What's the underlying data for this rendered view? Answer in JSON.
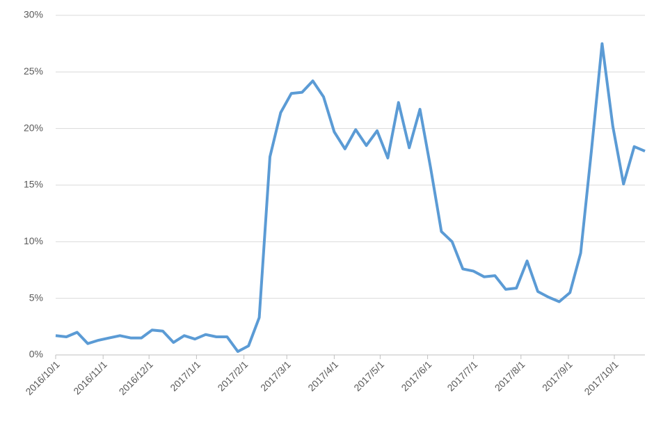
{
  "chart_data": {
    "type": "line",
    "x": [
      "2016/10/1",
      "2016/10/8",
      "2016/10/15",
      "2016/10/22",
      "2016/10/29",
      "2016/11/5",
      "2016/11/12",
      "2016/11/19",
      "2016/11/26",
      "2016/12/3",
      "2016/12/10",
      "2016/12/17",
      "2016/12/24",
      "2016/12/31",
      "2017/1/7",
      "2017/1/14",
      "2017/1/21",
      "2017/1/28",
      "2017/2/4",
      "2017/2/11",
      "2017/2/18",
      "2017/2/25",
      "2017/3/4",
      "2017/3/11",
      "2017/3/18",
      "2017/3/25",
      "2017/4/1",
      "2017/4/8",
      "2017/4/15",
      "2017/4/22",
      "2017/4/29",
      "2017/5/6",
      "2017/5/13",
      "2017/5/20",
      "2017/5/27",
      "2017/6/3",
      "2017/6/10",
      "2017/6/17",
      "2017/6/24",
      "2017/7/1",
      "2017/7/8",
      "2017/7/15",
      "2017/7/22",
      "2017/7/29",
      "2017/8/5",
      "2017/8/12",
      "2017/8/19",
      "2017/8/26",
      "2017/9/2",
      "2017/9/9",
      "2017/9/16",
      "2017/9/23",
      "2017/9/30",
      "2017/10/7",
      "2017/10/14",
      "2017/10/21"
    ],
    "series": [
      {
        "color": "#5b9bd5",
        "values": [
          1.7,
          1.6,
          2.0,
          1.0,
          1.3,
          1.5,
          1.7,
          1.5,
          1.5,
          2.2,
          2.1,
          1.1,
          1.7,
          1.4,
          1.8,
          1.6,
          1.6,
          0.3,
          0.8,
          3.3,
          17.5,
          21.4,
          23.1,
          23.2,
          24.2,
          22.8,
          19.7,
          18.2,
          19.9,
          18.5,
          19.8,
          17.4,
          22.3,
          18.3,
          21.7,
          16.5,
          10.9,
          10.0,
          7.6,
          7.4,
          6.9,
          7.0,
          5.8,
          5.9,
          8.3,
          5.6,
          5.1,
          4.7,
          5.5,
          9.0,
          18.0,
          27.5,
          20.2,
          15.1,
          18.4,
          18.0
        ]
      }
    ],
    "xlim": [
      "2016/10/1",
      "2017/10/21"
    ],
    "xticks": [
      "2016/10/1",
      "2016/11/1",
      "2016/12/1",
      "2017/1/1",
      "2017/2/1",
      "2017/3/1",
      "2017/4/1",
      "2017/5/1",
      "2017/6/1",
      "2017/7/1",
      "2017/8/1",
      "2017/9/1",
      "2017/10/1"
    ],
    "ylim": [
      0,
      30
    ],
    "yticks": [
      {
        "value": 0,
        "label": "0%"
      },
      {
        "value": 5,
        "label": "5%"
      },
      {
        "value": 10,
        "label": "10%"
      },
      {
        "value": 15,
        "label": "15%"
      },
      {
        "value": 20,
        "label": "20%"
      },
      {
        "value": 25,
        "label": "25%"
      },
      {
        "value": 30,
        "label": "30%"
      }
    ],
    "grid": true
  }
}
